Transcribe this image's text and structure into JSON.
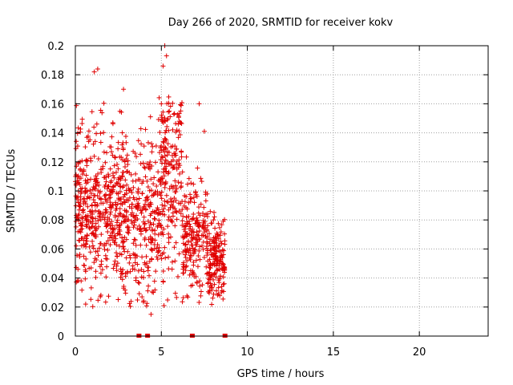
{
  "chart_data": {
    "type": "scatter",
    "title": "Day 266 of 2020, SRMTID for receiver kokv",
    "xlabel": "GPS time / hours",
    "ylabel": "SRMTID / TECUs",
    "xlim": [
      0,
      24
    ],
    "ylim": [
      0,
      0.2
    ],
    "x_ticks": [
      0,
      5,
      10,
      15,
      20
    ],
    "x_tick_labels": [
      "0",
      "5",
      "10",
      "15",
      "20"
    ],
    "y_ticks": [
      0,
      0.02,
      0.04,
      0.06,
      0.08,
      0.1,
      0.12,
      0.14,
      0.16,
      0.18,
      0.2
    ],
    "y_tick_labels": [
      "0",
      "0.02",
      "0.04",
      "0.06",
      "0.08",
      "0.1",
      "0.12",
      "0.14",
      "0.16",
      "0.18",
      "0.2"
    ],
    "grid": true,
    "marker": "+",
    "color": "#e00000",
    "series": [
      {
        "name": "SRMTID",
        "clusters": [
          {
            "x_start": 0.0,
            "x_end": 3.0,
            "count": 520,
            "mean": 0.088,
            "sd": 0.026
          },
          {
            "x_start": 3.0,
            "x_end": 4.8,
            "count": 240,
            "mean": 0.078,
            "sd": 0.028
          },
          {
            "x_start": 4.8,
            "x_end": 6.2,
            "count": 230,
            "mean": 0.106,
            "sd": 0.035
          },
          {
            "x_start": 6.2,
            "x_end": 7.7,
            "count": 210,
            "mean": 0.07,
            "sd": 0.02
          },
          {
            "x_start": 7.7,
            "x_end": 8.7,
            "count": 170,
            "mean": 0.052,
            "sd": 0.014
          }
        ],
        "outliers": [
          {
            "x": 1.1,
            "y": 0.182
          },
          {
            "x": 1.3,
            "y": 0.184
          },
          {
            "x": 2.8,
            "y": 0.17
          },
          {
            "x": 5.2,
            "y": 0.2
          },
          {
            "x": 5.3,
            "y": 0.193
          },
          {
            "x": 5.1,
            "y": 0.186
          },
          {
            "x": 7.2,
            "y": 0.16
          },
          {
            "x": 4.4,
            "y": 0.015
          },
          {
            "x": 0.6,
            "y": 0.022
          },
          {
            "x": 7.5,
            "y": 0.141
          },
          {
            "x": 5.0,
            "y": 0.16
          }
        ]
      }
    ],
    "gap_markers_x": [
      3.7,
      4.2,
      6.8,
      8.7
    ]
  }
}
